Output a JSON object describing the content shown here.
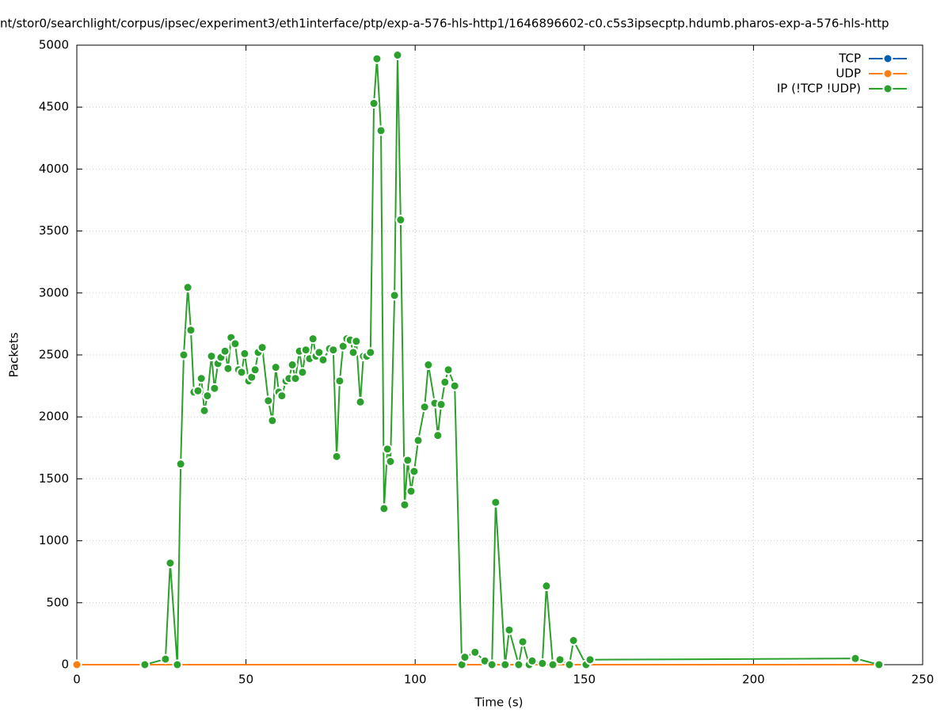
{
  "chart_data": {
    "type": "line",
    "title": "nt/stor0/searchlight/corpus/ipsec/experiment3/eth1interface/ptp/exp-a-576-hls-http1/1646896602-c0.c5s3ipsecptp.hdumb.pharos-exp-a-576-hls-http",
    "xlabel": "Time (s)",
    "ylabel": "Packets",
    "xlim": [
      0,
      250
    ],
    "ylim": [
      0,
      5000
    ],
    "xticks": [
      0,
      50,
      100,
      150,
      200,
      250
    ],
    "yticks": [
      0,
      500,
      1000,
      1500,
      2000,
      2500,
      3000,
      3500,
      4000,
      4500,
      5000
    ],
    "grid": true,
    "legend": "upper right",
    "series": [
      {
        "name": "TCP",
        "color": "#0060ad",
        "x": [
          0,
          237
        ],
        "values": [
          0,
          0
        ]
      },
      {
        "name": "UDP",
        "color": "#ff7f0e",
        "x": [
          0,
          237
        ],
        "values": [
          0,
          0
        ]
      },
      {
        "name": "IP (!TCP  !UDP)",
        "color": "#2ca02c",
        "x": [
          20.1,
          26.2,
          27.6,
          29.7,
          30.7,
          31.6,
          32.8,
          33.7,
          34.6,
          35.8,
          36.8,
          37.7,
          38.6,
          39.8,
          40.7,
          41.7,
          42.6,
          43.8,
          44.7,
          45.6,
          46.8,
          47.8,
          48.7,
          49.6,
          50.8,
          51.7,
          52.7,
          53.6,
          54.8,
          56.6,
          57.8,
          58.8,
          59.7,
          60.6,
          61.8,
          62.7,
          63.7,
          64.6,
          65.8,
          66.7,
          67.7,
          68.8,
          69.8,
          70.7,
          71.6,
          72.8,
          74.7,
          75.8,
          76.8,
          77.7,
          78.7,
          79.8,
          80.8,
          81.7,
          82.6,
          83.8,
          84.7,
          85.7,
          86.8,
          87.8,
          88.7,
          89.9,
          90.8,
          91.8,
          92.7,
          93.9,
          94.8,
          95.7,
          96.9,
          97.8,
          98.8,
          99.7,
          100.9,
          102.8,
          103.9,
          105.8,
          106.7,
          107.7,
          108.8,
          109.8,
          111.7,
          113.8,
          114.7,
          117.7,
          120.6,
          122.7,
          123.8,
          126.6,
          127.8,
          130.6,
          131.8,
          133.7,
          134.6,
          137.6,
          138.8,
          140.7,
          142.8,
          145.6,
          146.8,
          150.5,
          151.7,
          230.1,
          237.1
        ],
        "values": [
          0,
          45,
          820,
          0,
          1620,
          2500,
          3045,
          2700,
          2200,
          2210,
          2310,
          2050,
          2170,
          2490,
          2230,
          2430,
          2480,
          2530,
          2390,
          2640,
          2590,
          2380,
          2360,
          2510,
          2290,
          2320,
          2380,
          2520,
          2560,
          2130,
          1970,
          2400,
          2200,
          2170,
          2290,
          2310,
          2420,
          2310,
          2530,
          2360,
          2540,
          2470,
          2630,
          2490,
          2520,
          2460,
          2550,
          2540,
          1680,
          2290,
          2570,
          2630,
          2620,
          2520,
          2610,
          2120,
          2490,
          2490,
          2520,
          4530,
          4890,
          4310,
          1260,
          1740,
          1640,
          2980,
          4920,
          3590,
          1290,
          1650,
          1400,
          1560,
          1810,
          2080,
          2420,
          2110,
          1850,
          2100,
          2280,
          2380,
          2250,
          0,
          60,
          100,
          30,
          0,
          1310,
          0,
          280,
          0,
          185,
          0,
          30,
          10,
          635,
          0,
          40,
          0,
          195,
          0,
          40,
          50,
          0
        ]
      }
    ]
  }
}
